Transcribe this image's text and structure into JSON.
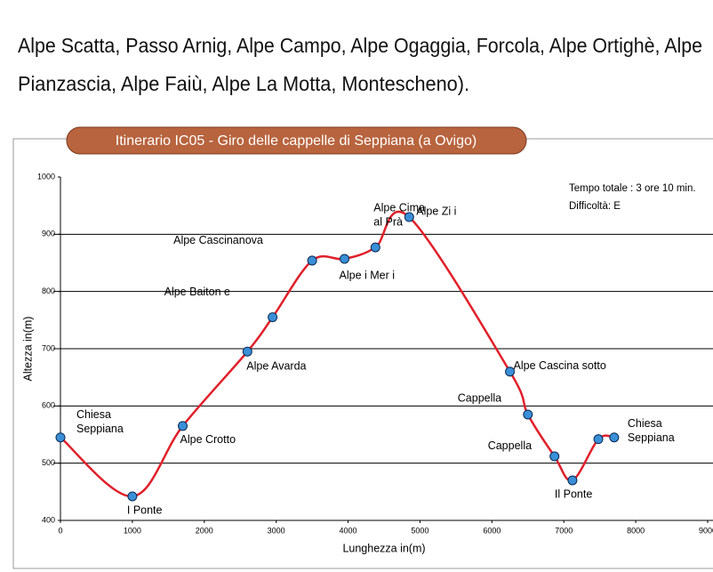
{
  "intro_lines": [
    "Alpe Scatta, Passo Arnig, Alpe Campo, Alpe Ogaggia, Forcola, Alpe Ortighè, Alpe",
    "Pianzascia, Alpe Faiù, Alpe La Motta, Montescheno)."
  ],
  "chart_data": {
    "type": "line",
    "title": "Itinerario IC05 - Giro delle cappelle di Seppiana (a Ovigo)",
    "x_label": "Lunghezza in(m)",
    "y_label": "Altezza in(m)",
    "annotations": [
      "Tempo totale : 3 ore 10 min.",
      "Difficoltà: E"
    ],
    "x": [
      0,
      1000,
      1700,
      2600,
      2950,
      3500,
      3950,
      4380,
      4850,
      6250,
      6500,
      6870,
      7120,
      7480,
      7700
    ],
    "series": [
      {
        "color": "#e0202a",
        "values": [
          545,
          442,
          565,
          695,
          755,
          854,
          857,
          877,
          930,
          660,
          585,
          512,
          470,
          542,
          545
        ]
      }
    ],
    "point_labels": [
      [
        "Chiesa",
        "Seppiana"
      ],
      [
        "I Ponte"
      ],
      [
        "Alpe Crotto"
      ],
      [
        "Alpe Avarda"
      ],
      [
        "Alpe Baiton e"
      ],
      [
        "Alpe Cascinanova"
      ],
      [
        "Alpe i Mer i"
      ],
      [
        "Alpe Cima",
        "al Prà"
      ],
      [
        "Alpe Zi i"
      ],
      [
        "Alpe Cascina sotto"
      ],
      [
        "Cappella"
      ],
      [
        "Cappella"
      ],
      [
        "Il Ponte"
      ],
      null,
      [
        "Chiesa",
        "Seppiana"
      ]
    ],
    "marker_color": "#3a8fd6",
    "xlim": [
      0,
      9000
    ],
    "ylim": [
      400,
      1000
    ],
    "xticks": [
      0,
      1000,
      2000,
      3000,
      4000,
      5000,
      6000,
      7000,
      8000,
      9000
    ],
    "yticks": [
      400,
      500,
      600,
      700,
      800,
      900,
      1000
    ],
    "grid": true
  }
}
